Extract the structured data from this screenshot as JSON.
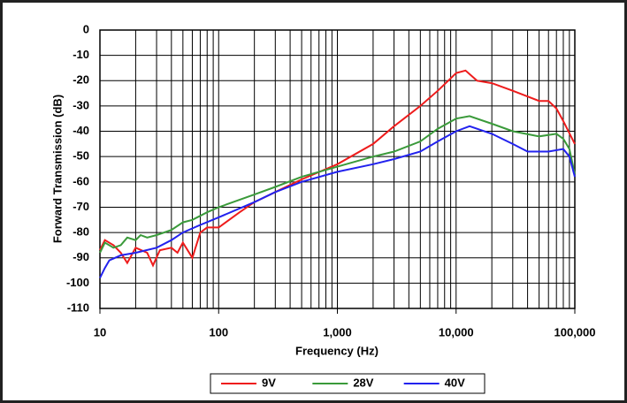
{
  "chart_data": {
    "type": "line",
    "x_label": "Frequency (Hz)",
    "y_label": "Forward Transmission (dB)",
    "xscale": "log",
    "grid": true,
    "xlim": [
      10,
      100000
    ],
    "xticks": [
      10,
      100,
      {
        "value": 1000,
        "label": "1,000"
      },
      {
        "value": 10000,
        "label": "10,000"
      },
      {
        "value": 100000,
        "label": "100,000"
      }
    ],
    "ylim": [
      -110,
      0
    ],
    "yticks": [
      0,
      -10,
      -20,
      -30,
      -40,
      -50,
      -60,
      -70,
      -80,
      -90,
      -100,
      -110
    ],
    "legend": "bottom",
    "series": [
      {
        "name": "9V",
        "color": "#ee1c1c",
        "x": [
          10,
          11,
          13,
          15,
          17,
          20,
          25,
          28,
          32,
          40,
          45,
          50,
          60,
          70,
          80,
          100,
          150,
          200,
          300,
          500,
          1000,
          2000,
          3000,
          5000,
          7000,
          10000,
          12000,
          15000,
          20000,
          30000,
          50000,
          60000,
          70000,
          80000,
          100000
        ],
        "values": [
          -87,
          -83,
          -85,
          -88,
          -92,
          -86,
          -88,
          -93,
          -87,
          -86,
          -88,
          -84,
          -90,
          -80,
          -78,
          -78,
          -72,
          -68,
          -64,
          -59,
          -53,
          -45,
          -38,
          -30,
          -24,
          -17,
          -16,
          -20,
          -21,
          -24,
          -28,
          -28,
          -31,
          -36,
          -45
        ]
      },
      {
        "name": "28V",
        "color": "#3a9a3a",
        "x": [
          10,
          11,
          13,
          15,
          17,
          20,
          22,
          25,
          30,
          40,
          50,
          60,
          80,
          100,
          200,
          300,
          500,
          1000,
          2000,
          3000,
          5000,
          7000,
          10000,
          13000,
          20000,
          30000,
          50000,
          70000,
          80000,
          90000,
          100000
        ],
        "values": [
          -88,
          -84,
          -86,
          -85,
          -82,
          -83,
          -81,
          -82,
          -81,
          -79,
          -76,
          -75,
          -72,
          -70,
          -65,
          -62,
          -58,
          -54,
          -50,
          -48,
          -44,
          -39,
          -35,
          -34,
          -37,
          -40,
          -42,
          -41,
          -43,
          -47,
          -57
        ]
      },
      {
        "name": "40V",
        "color": "#2222ee",
        "x": [
          10,
          11,
          12,
          15,
          20,
          30,
          40,
          50,
          70,
          100,
          200,
          300,
          500,
          1000,
          2000,
          3000,
          5000,
          7000,
          10000,
          13000,
          20000,
          30000,
          40000,
          60000,
          80000,
          90000,
          100000
        ],
        "values": [
          -98,
          -94,
          -91,
          -89,
          -88,
          -86,
          -83,
          -80,
          -77,
          -74,
          -68,
          -64,
          -60,
          -56,
          -53,
          -51,
          -48,
          -44,
          -40,
          -38,
          -41,
          -45,
          -48,
          -48,
          -47,
          -50,
          -58
        ]
      }
    ]
  }
}
